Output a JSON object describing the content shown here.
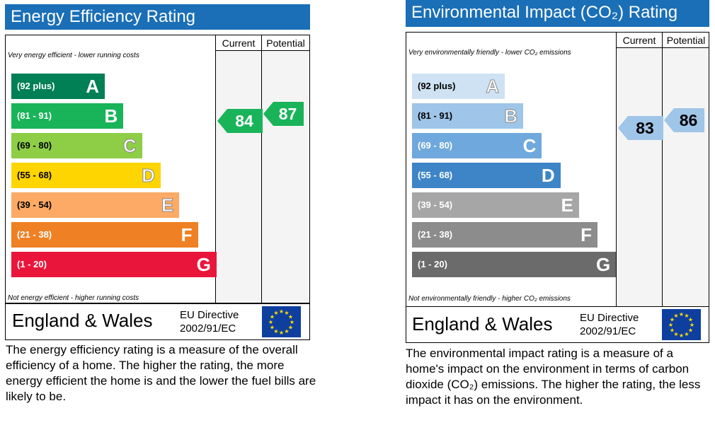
{
  "chart_data": [
    {
      "type": "table",
      "title": "Energy Efficiency Rating",
      "columns": [
        "Current",
        "Potential"
      ],
      "top_note": "Very energy efficient - lower running costs",
      "bottom_note": "Not energy efficient - higher running costs",
      "bands": [
        {
          "range": "(92 plus)",
          "letter": "A",
          "color": "#008054"
        },
        {
          "range": "(81 - 91)",
          "letter": "B",
          "color": "#19b459"
        },
        {
          "range": "(69 - 80)",
          "letter": "C",
          "color": "#8dce46"
        },
        {
          "range": "(55 - 68)",
          "letter": "D",
          "color": "#ffd500"
        },
        {
          "range": "(39 - 54)",
          "letter": "E",
          "color": "#fcaa65"
        },
        {
          "range": "(21 - 38)",
          "letter": "F",
          "color": "#ef8023"
        },
        {
          "range": "(1 - 20)",
          "letter": "G",
          "color": "#e9153b"
        }
      ],
      "current": 84,
      "potential": 87,
      "current_color": "#19b459",
      "potential_color": "#19b459",
      "footer_region": "England & Wales",
      "footer_directive_line1": "EU Directive",
      "footer_directive_line2": "2002/91/EC",
      "description": "The energy efficiency rating is a measure of the overall efficiency of a home. The higher the rating, the more energy efficient the home is and the lower the fuel bills are likely to be."
    },
    {
      "type": "table",
      "title": "Environmental Impact (CO₂) Rating",
      "columns": [
        "Current",
        "Potential"
      ],
      "top_note": "Very environmentally friendly - lower CO₂ emissions",
      "bottom_note": "Not environmentally friendly - higher CO₂ emissions",
      "bands": [
        {
          "range": "(92 plus)",
          "letter": "A",
          "color": "#cfe2f3"
        },
        {
          "range": "(81 - 91)",
          "letter": "B",
          "color": "#9fc5e8"
        },
        {
          "range": "(69 - 80)",
          "letter": "C",
          "color": "#6fa8dc"
        },
        {
          "range": "(55 - 68)",
          "letter": "D",
          "color": "#3d85c6"
        },
        {
          "range": "(39 - 54)",
          "letter": "E",
          "color": "#a6a6a6"
        },
        {
          "range": "(21 - 38)",
          "letter": "F",
          "color": "#8c8c8c"
        },
        {
          "range": "(1 - 20)",
          "letter": "G",
          "color": "#6b6b6b"
        }
      ],
      "current": 83,
      "potential": 86,
      "current_color": "#9fc5e8",
      "potential_color": "#9fc5e8",
      "footer_region": "England & Wales",
      "footer_directive_line1": "EU Directive",
      "footer_directive_line2": "2002/91/EC",
      "description": "The environmental impact rating is a measure of a home's impact on the environment in terms of carbon dioxide (CO₂) emissions. The higher the rating, the less impact it has on the environment."
    }
  ]
}
